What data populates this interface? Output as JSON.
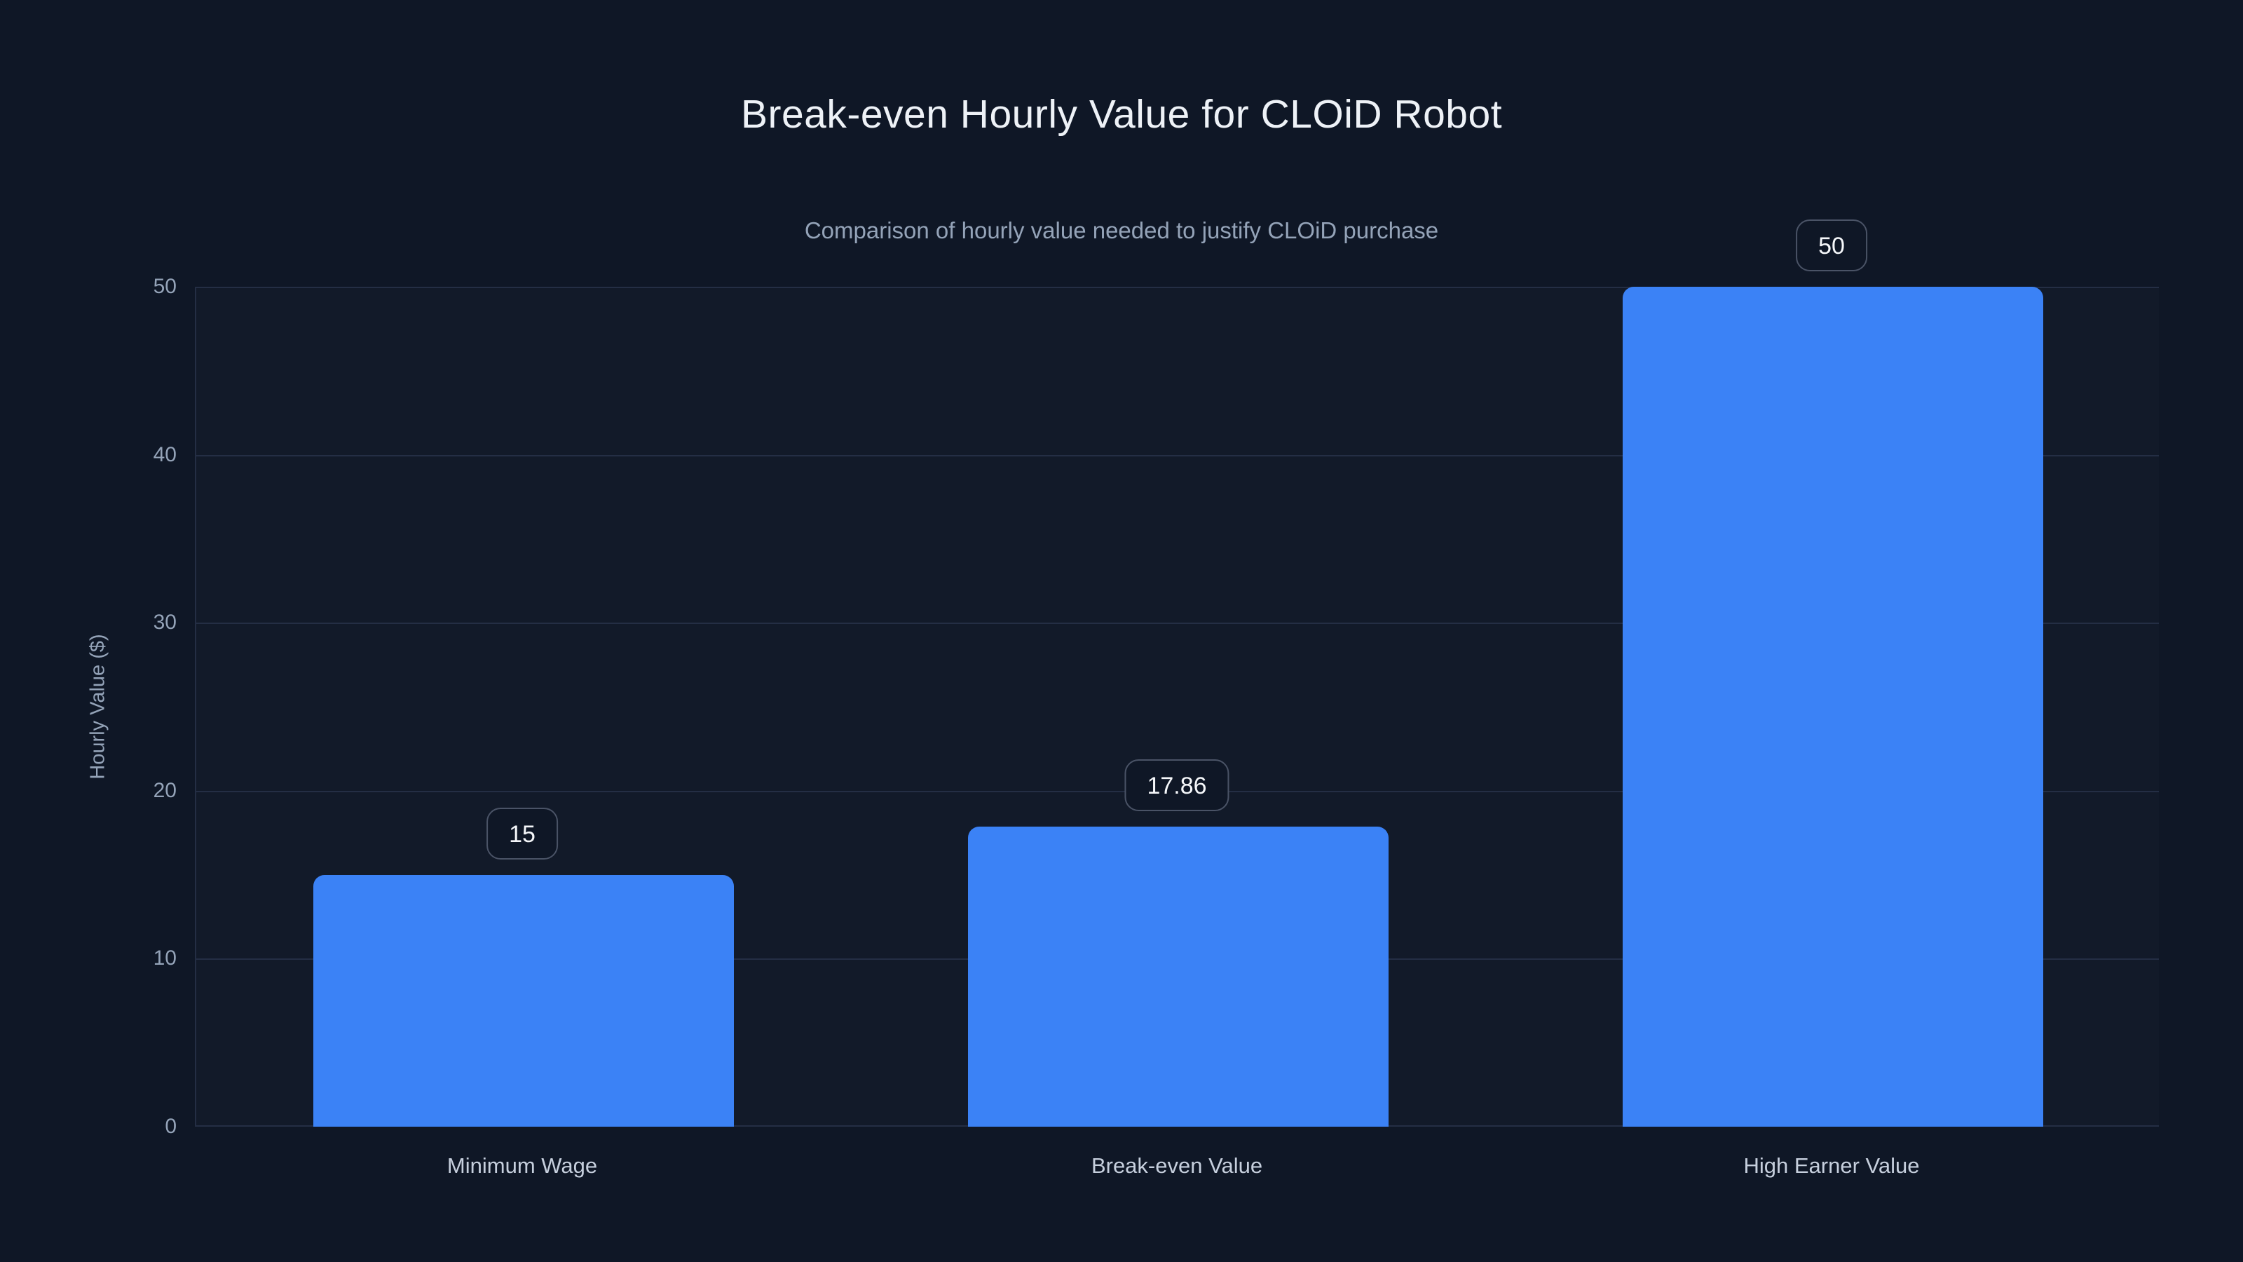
{
  "chart_data": {
    "type": "bar",
    "title": "Break-even Hourly Value for CLOiD Robot",
    "subtitle": "Comparison of hourly value needed to justify CLOiD purchase",
    "categories": [
      "Minimum Wage",
      "Break-even Value",
      "High Earner Value"
    ],
    "values": [
      15,
      17.86,
      50
    ],
    "value_labels": [
      "15",
      "17.86",
      "50"
    ],
    "xlabel": "",
    "ylabel": "Hourly Value ($)",
    "ylim": [
      0,
      50
    ],
    "yticks": [
      "0",
      "10",
      "20",
      "30",
      "40",
      "50"
    ],
    "grid": true,
    "legend": false,
    "colors": {
      "background": "#0f1726",
      "bar": "#3b82f6",
      "grid": "#242e44",
      "tick_label": "#94a3b8",
      "category_label": "#c6cfdd",
      "title": "#eef2f7",
      "subtitle": "#94a3b8",
      "badge_border": "#4a5366",
      "badge_text": "#f5f7fa"
    }
  }
}
